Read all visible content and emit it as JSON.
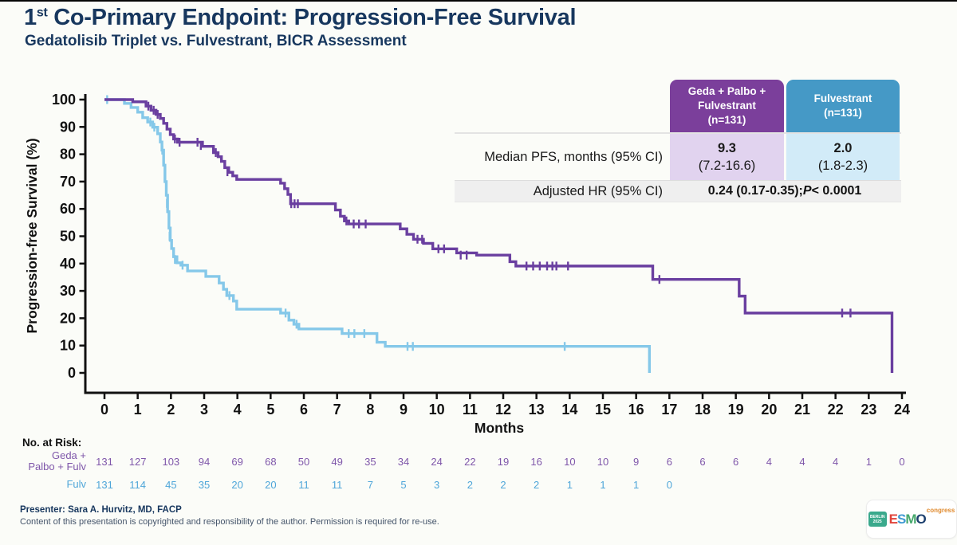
{
  "slide": {
    "title_num": "1",
    "title_sup": "st",
    "title_rest": " Co-Primary Endpoint: Progression-Free Survival",
    "subtitle": "Gedatolisib Triplet vs. Fulvestrant, BICR Assessment"
  },
  "summary_table": {
    "col_geda_header_lines": [
      "Geda + Palbo +",
      "Fulvestrant",
      "(n=131)"
    ],
    "col_fulv_header_lines": [
      "Fulvestrant",
      "(n=131)"
    ],
    "row_pfs_label": "Median PFS, months (95% CI)",
    "pfs_geda_value": "9.3",
    "pfs_geda_ci": "(7.2-16.6)",
    "pfs_fulv_value": "2.0",
    "pfs_fulv_ci": "(1.8-2.3)",
    "row_hr_label": "Adjusted HR (95% CI)",
    "hr_value_prefix": "0.24 (0.17-0.35); ",
    "hr_value_p": "P",
    "hr_value_suffix": " < 0.0001",
    "colors": {
      "geda_header_bg": "#7b3f9b",
      "fulv_header_bg": "#4599c6",
      "geda_cell_bg": "#e1d3ef",
      "fulv_cell_bg": "#d2ebf8",
      "hr_row_bg": "#efefef"
    }
  },
  "chart_data": {
    "type": "line",
    "subtype": "kaplan-meier-step",
    "title": "",
    "xlabel": "Months",
    "ylabel": "Progression-free Survival (%)",
    "xlim": [
      0,
      24
    ],
    "ylim": [
      0,
      100
    ],
    "xticks": [
      0,
      1,
      2,
      3,
      4,
      5,
      6,
      7,
      8,
      9,
      10,
      11,
      12,
      13,
      14,
      15,
      16,
      17,
      18,
      19,
      20,
      21,
      22,
      23,
      24
    ],
    "yticks": [
      0,
      10,
      20,
      30,
      40,
      50,
      60,
      70,
      80,
      90,
      100
    ],
    "grid": false,
    "legend_position": "none",
    "series": [
      {
        "name": "Geda + Palbo + Fulvestrant",
        "color": "#6a3fa0",
        "steps": [
          [
            0,
            100
          ],
          [
            0.85,
            99.2
          ],
          [
            1.25,
            97.6
          ],
          [
            1.4,
            96.1
          ],
          [
            1.55,
            94.6
          ],
          [
            1.68,
            93.1
          ],
          [
            1.78,
            91.3
          ],
          [
            1.88,
            89.2
          ],
          [
            1.98,
            87.2
          ],
          [
            2.08,
            85.6
          ],
          [
            2.2,
            84.4
          ],
          [
            2.95,
            82.9
          ],
          [
            3.28,
            80.6
          ],
          [
            3.42,
            79.1
          ],
          [
            3.52,
            77.4
          ],
          [
            3.62,
            75.1
          ],
          [
            3.74,
            73.4
          ],
          [
            3.86,
            72.1
          ],
          [
            3.98,
            70.8
          ],
          [
            5.3,
            69.4
          ],
          [
            5.42,
            67.4
          ],
          [
            5.52,
            65.3
          ],
          [
            5.6,
            61.9
          ],
          [
            6.95,
            59.6
          ],
          [
            7.1,
            57.3
          ],
          [
            7.22,
            55.6
          ],
          [
            7.35,
            54.5
          ],
          [
            8.9,
            52.7
          ],
          [
            9.1,
            50.7
          ],
          [
            9.3,
            48.9
          ],
          [
            9.6,
            47.4
          ],
          [
            9.88,
            45.4
          ],
          [
            10.6,
            43.9
          ],
          [
            11.2,
            43.1
          ],
          [
            12.2,
            40.7
          ],
          [
            12.38,
            39.1
          ],
          [
            16.5,
            34.2
          ],
          [
            19.1,
            28.1
          ],
          [
            19.28,
            21.9
          ],
          [
            23.7,
            0
          ]
        ],
        "censors": [
          [
            1.32,
            97.6
          ],
          [
            1.48,
            96.1
          ],
          [
            1.6,
            94.6
          ],
          [
            2.12,
            85.6
          ],
          [
            2.26,
            84.4
          ],
          [
            2.8,
            84.4
          ],
          [
            2.9,
            83.2
          ],
          [
            3.35,
            80.6
          ],
          [
            3.7,
            73.6
          ],
          [
            5.62,
            61.9
          ],
          [
            5.72,
            61.9
          ],
          [
            5.82,
            61.9
          ],
          [
            7.28,
            55.6
          ],
          [
            7.5,
            54.5
          ],
          [
            7.66,
            54.5
          ],
          [
            7.86,
            54.5
          ],
          [
            9.42,
            48.9
          ],
          [
            9.56,
            48.9
          ],
          [
            10.05,
            45.4
          ],
          [
            10.22,
            45.4
          ],
          [
            10.72,
            43.1
          ],
          [
            10.9,
            43.1
          ],
          [
            12.7,
            39.1
          ],
          [
            12.9,
            39.1
          ],
          [
            13.1,
            39.1
          ],
          [
            13.32,
            39.1
          ],
          [
            13.48,
            39.1
          ],
          [
            13.6,
            39.1
          ],
          [
            13.95,
            39.1
          ],
          [
            16.7,
            34.2
          ],
          [
            22.2,
            21.9
          ],
          [
            22.45,
            21.9
          ]
        ]
      },
      {
        "name": "Fulvestrant",
        "color": "#85c8e9",
        "steps": [
          [
            0,
            100
          ],
          [
            0.6,
            98.6
          ],
          [
            0.8,
            97.1
          ],
          [
            1.0,
            95.4
          ],
          [
            1.15,
            93.4
          ],
          [
            1.3,
            91.8
          ],
          [
            1.45,
            89.9
          ],
          [
            1.6,
            87.5
          ],
          [
            1.68,
            84.5
          ],
          [
            1.73,
            81.5
          ],
          [
            1.78,
            76
          ],
          [
            1.82,
            70
          ],
          [
            1.86,
            65
          ],
          [
            1.9,
            59
          ],
          [
            1.94,
            53
          ],
          [
            1.98,
            48.5
          ],
          [
            2.02,
            45.5
          ],
          [
            2.08,
            42.5
          ],
          [
            2.18,
            40.3
          ],
          [
            2.3,
            39.4
          ],
          [
            2.5,
            37.3
          ],
          [
            3.05,
            35.3
          ],
          [
            3.45,
            32.9
          ],
          [
            3.58,
            30.6
          ],
          [
            3.68,
            28.3
          ],
          [
            3.88,
            26.3
          ],
          [
            3.98,
            23.3
          ],
          [
            5.3,
            21.9
          ],
          [
            5.55,
            19.3
          ],
          [
            5.7,
            17.8
          ],
          [
            5.85,
            16.1
          ],
          [
            7.15,
            14.4
          ],
          [
            8.2,
            11.2
          ],
          [
            8.45,
            9.7
          ],
          [
            16.4,
            0
          ]
        ],
        "censors": [
          [
            0.08,
            100
          ],
          [
            1.38,
            91.8
          ],
          [
            1.5,
            89.9
          ],
          [
            1.74,
            81.5
          ],
          [
            1.88,
            62
          ],
          [
            1.96,
            50
          ],
          [
            2.12,
            41.5
          ],
          [
            2.35,
            39.4
          ],
          [
            3.76,
            28.3
          ],
          [
            5.45,
            21.9
          ],
          [
            5.78,
            17.8
          ],
          [
            7.35,
            14.4
          ],
          [
            7.52,
            14.4
          ],
          [
            7.82,
            14.4
          ],
          [
            9.12,
            9.7
          ],
          [
            9.28,
            9.7
          ],
          [
            13.85,
            9.7
          ]
        ]
      }
    ]
  },
  "risk_table": {
    "title": "No. at Risk:",
    "months": [
      0,
      1,
      2,
      3,
      4,
      5,
      6,
      7,
      8,
      9,
      10,
      11,
      12,
      13,
      14,
      15,
      16,
      17,
      18,
      19,
      20,
      21,
      22,
      23,
      24
    ],
    "rows": [
      {
        "label_lines": [
          "Geda +",
          "Palbo + Fulv"
        ],
        "color": "#7f57aa",
        "values": [
          131,
          127,
          103,
          94,
          69,
          68,
          50,
          49,
          35,
          34,
          24,
          22,
          19,
          16,
          10,
          10,
          9,
          6,
          6,
          6,
          4,
          4,
          4,
          1,
          0
        ]
      },
      {
        "label_lines": [
          "Fulv"
        ],
        "color": "#4fa6d9",
        "values": [
          131,
          114,
          45,
          35,
          20,
          20,
          11,
          11,
          7,
          5,
          3,
          2,
          2,
          2,
          1,
          1,
          1,
          0
        ]
      }
    ]
  },
  "footer": {
    "presenter": "Presenter: Sara A. Hurvitz, MD, FACP",
    "copyright": "Content of this presentation is copyrighted and responsibility of the author. Permission is required for re-use."
  },
  "logo": {
    "badge_lines": [
      "BERLIN",
      "2025"
    ],
    "badge_color": "#3aa98c",
    "letters": [
      {
        "ch": "E",
        "color": "#e0433a"
      },
      {
        "ch": "S",
        "color": "#3f9ad2"
      },
      {
        "ch": "M",
        "color": "#46a86c"
      },
      {
        "ch": "O",
        "color": "#1c3f6e"
      }
    ],
    "suffix": "congress",
    "suffix_color": "#e08a2e"
  }
}
